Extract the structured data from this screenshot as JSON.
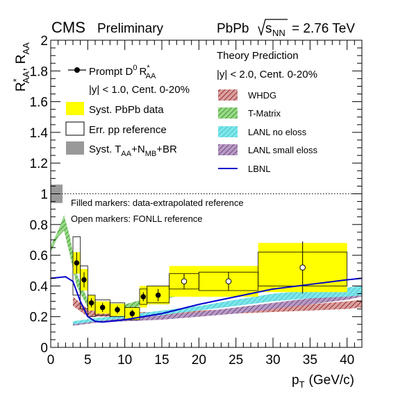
{
  "header": {
    "cms": "CMS",
    "preliminary": "Preliminary",
    "collision": "PbPb",
    "sqrt_label": "s",
    "sqrt_sub": "NN",
    "energy": "= 2.76 TeV"
  },
  "legend_left": {
    "prompt_main": "Prompt D",
    "prompt_sup": "0",
    "prompt_R": "R",
    "prompt_sub": "AA",
    "prompt_star": "*",
    "selection": "|y| < 1.0, Cent. 0-20%",
    "syst_pbpb": "Syst. PbPb data",
    "err_pp": "Err. pp reference",
    "syst_taa_a": "Syst. T",
    "syst_taa_sub1": "AA",
    "syst_taa_b": "+N",
    "syst_taa_sub2": "MB",
    "syst_taa_c": "+BR"
  },
  "legend_right": {
    "title": "Theory Prediction",
    "selection": "|y| < 2.0, Cent. 0-20%",
    "entries": [
      "WHDG",
      "T-Matrix",
      "LANL no eloss",
      "LANL small eloss",
      "LBNL"
    ]
  },
  "notes": {
    "filled": "Filled markers: data-extrapolated reference",
    "open": "Open markers: FONLL reference"
  },
  "colors": {
    "yellow_syst": "#ffff00",
    "grey_syst": "#999999",
    "whdg": "#b03030",
    "tmatrix": "#5ab83a",
    "lanl_no": "#4fd6dc",
    "lanl_small": "#8a5a9a",
    "lbnl": "#0000cc"
  },
  "chart_data": {
    "type": "scatter",
    "xlabel": "p",
    "xlabel_sub": "T",
    "xlabel_unit": "(GeV/c)",
    "ylabel_R1": "R",
    "ylabel_star": "*",
    "ylabel_sub1": "AA",
    "ylabel_sep": ", R",
    "ylabel_sub2": "AA",
    "xlim": [
      0,
      42
    ],
    "ylim": [
      0,
      2
    ],
    "x_ticks": [
      "0",
      "5",
      "10",
      "15",
      "20",
      "25",
      "30",
      "35",
      "40"
    ],
    "y_ticks": [
      "0",
      "0.2",
      "0.4",
      "0.6",
      "0.8",
      "1",
      "1.2",
      "1.4",
      "1.6",
      "1.8",
      "2"
    ],
    "reference_line": 1.0,
    "normalization_box": {
      "y_low": 0.94,
      "y_high": 1.06,
      "x_low": 0,
      "x_high": 1.6
    },
    "data_filled": {
      "name": "Prompt D0 R*AA",
      "points": [
        {
          "x": 3.5,
          "y": 0.55,
          "xlo": 3,
          "xhi": 4,
          "err": 0.07,
          "syst": 0.07,
          "pp_lo": 0.34,
          "pp_hi": 0.72
        },
        {
          "x": 4.5,
          "y": 0.44,
          "xlo": 4,
          "xhi": 5,
          "err": 0.05,
          "syst": 0.07,
          "pp_lo": 0.25,
          "pp_hi": 0.53
        },
        {
          "x": 5.5,
          "y": 0.29,
          "xlo": 5,
          "xhi": 6,
          "err": 0.03,
          "syst": 0.05,
          "pp_lo": 0.2,
          "pp_hi": 0.34
        },
        {
          "x": 7.0,
          "y": 0.26,
          "xlo": 6,
          "xhi": 8,
          "err": 0.03,
          "syst": 0.04,
          "pp_lo": 0.21,
          "pp_hi": 0.31
        },
        {
          "x": 9.0,
          "y": 0.245,
          "xlo": 8,
          "xhi": 10,
          "err": 0.025,
          "syst": 0.04,
          "pp_lo": 0.2,
          "pp_hi": 0.29
        },
        {
          "x": 11.0,
          "y": 0.22,
          "xlo": 10,
          "xhi": 12,
          "err": 0.025,
          "syst": 0.04,
          "pp_lo": 0.18,
          "pp_hi": 0.26
        },
        {
          "x": 12.5,
          "y": 0.33,
          "xlo": 12,
          "xhi": 13,
          "err": 0.03,
          "syst": 0.07,
          "pp_lo": 0.28,
          "pp_hi": 0.38
        },
        {
          "x": 14.5,
          "y": 0.34,
          "xlo": 13,
          "xhi": 16,
          "err": 0.04,
          "syst": 0.06,
          "pp_lo": 0.29,
          "pp_hi": 0.4
        }
      ]
    },
    "data_open": {
      "points": [
        {
          "x": 18.0,
          "y": 0.43,
          "xlo": 16,
          "xhi": 20,
          "err": 0.05,
          "syst": 0.1,
          "pp_lo": 0.38,
          "pp_hi": 0.48
        },
        {
          "x": 24.0,
          "y": 0.43,
          "xlo": 20,
          "xhi": 28,
          "err": 0.06,
          "syst": 0.1,
          "pp_lo": 0.37,
          "pp_hi": 0.49
        },
        {
          "x": 34.0,
          "y": 0.52,
          "xlo": 28,
          "xhi": 40,
          "err": 0.17,
          "syst": 0.16,
          "pp_lo": 0.4,
          "pp_hi": 0.62
        }
      ]
    },
    "theory": {
      "whdg": {
        "x": [
          3,
          5,
          10,
          15,
          20,
          25,
          30,
          35,
          40,
          42
        ],
        "lo": [
          0.27,
          0.2,
          0.2,
          0.2,
          0.21,
          0.22,
          0.23,
          0.24,
          0.25,
          0.26
        ],
        "hi": [
          0.33,
          0.25,
          0.23,
          0.23,
          0.24,
          0.25,
          0.26,
          0.28,
          0.3,
          0.31
        ]
      },
      "tmatrix": {
        "x": [
          0,
          1,
          1.8,
          2.6,
          3.5,
          5,
          7,
          10,
          13,
          16,
          20,
          25,
          29
        ],
        "lo": [
          0.62,
          0.72,
          0.76,
          0.6,
          0.4,
          0.26,
          0.22,
          0.24,
          0.28,
          0.32,
          0.37,
          0.43,
          0.48
        ],
        "hi": [
          0.66,
          0.76,
          0.86,
          0.72,
          0.48,
          0.31,
          0.26,
          0.28,
          0.32,
          0.36,
          0.42,
          0.48,
          0.53
        ]
      },
      "lanl_no": {
        "x": [
          3,
          6,
          10,
          15,
          20,
          25,
          30,
          35,
          40,
          42
        ],
        "lo": [
          0.15,
          0.17,
          0.19,
          0.21,
          0.24,
          0.27,
          0.3,
          0.32,
          0.33,
          0.34
        ],
        "hi": [
          0.17,
          0.19,
          0.21,
          0.24,
          0.27,
          0.31,
          0.35,
          0.37,
          0.39,
          0.4
        ]
      },
      "lanl_small": {
        "x": [
          3,
          6,
          10,
          15,
          20,
          25,
          30,
          35,
          40,
          42
        ],
        "lo": [
          0.14,
          0.16,
          0.17,
          0.18,
          0.2,
          0.22,
          0.25,
          0.28,
          0.31,
          0.33
        ],
        "hi": [
          0.16,
          0.18,
          0.2,
          0.21,
          0.23,
          0.26,
          0.29,
          0.32,
          0.35,
          0.37
        ]
      },
      "lbnl": {
        "x": [
          0,
          2,
          3,
          4,
          5,
          6,
          7,
          10,
          15,
          20,
          25,
          30,
          35,
          40,
          42
        ],
        "y": [
          0.45,
          0.46,
          0.43,
          0.3,
          0.2,
          0.17,
          0.165,
          0.18,
          0.22,
          0.28,
          0.33,
          0.38,
          0.41,
          0.44,
          0.45
        ]
      }
    }
  }
}
